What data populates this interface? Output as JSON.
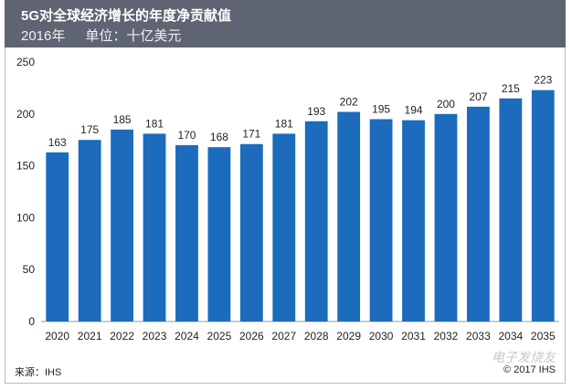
{
  "chart_data": {
    "type": "bar",
    "title": "5G对全球经济增长的年度净贡献值",
    "subtitle_year": "2016年",
    "subtitle_unit": "单位：十亿美元",
    "categories": [
      "2020",
      "2021",
      "2022",
      "2023",
      "2024",
      "2025",
      "2026",
      "2027",
      "2028",
      "2029",
      "2030",
      "2031",
      "2032",
      "2033",
      "2034",
      "2035"
    ],
    "values": [
      163,
      175,
      185,
      181,
      170,
      168,
      171,
      181,
      193,
      202,
      195,
      194,
      200,
      207,
      215,
      223
    ],
    "ylim": [
      0,
      250
    ],
    "yticks": [
      0,
      50,
      100,
      150,
      200,
      250
    ],
    "xlabel": "",
    "ylabel": "",
    "grid": false,
    "bar_color": "#1c6bbd"
  },
  "footer": {
    "source": "来源：IHS",
    "copyright": "© 2017 IHS",
    "watermark": "电子发烧友"
  }
}
